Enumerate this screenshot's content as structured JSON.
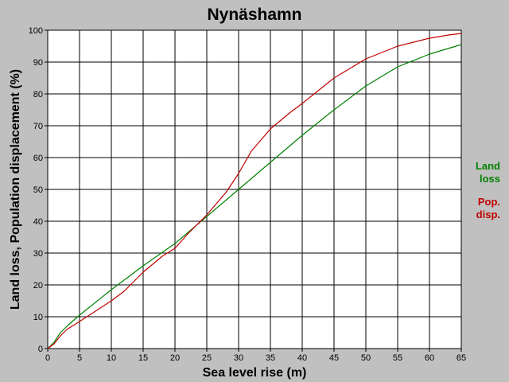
{
  "chart_data": {
    "type": "line",
    "title": "Nynäshamn",
    "xlabel": "Sea level rise (m)",
    "ylabel": "Land loss, Population displacement (%)",
    "xlim": [
      0,
      65
    ],
    "ylim": [
      0,
      100
    ],
    "xticks": [
      0,
      5,
      10,
      15,
      20,
      25,
      30,
      35,
      40,
      45,
      50,
      55,
      60,
      65
    ],
    "yticks": [
      0,
      10,
      20,
      30,
      40,
      50,
      60,
      70,
      80,
      90,
      100
    ],
    "grid": true,
    "legend_position": "right",
    "series": [
      {
        "name": "Land loss",
        "legend_lines": [
          "Land",
          "loss"
        ],
        "color": "#008000",
        "x": [
          0,
          1,
          2,
          3,
          5,
          10,
          15,
          20,
          25,
          30,
          35,
          40,
          45,
          50,
          55,
          60,
          65
        ],
        "y": [
          0,
          2,
          5,
          7,
          10.5,
          18.5,
          26,
          33,
          41.5,
          50,
          58.5,
          67,
          75,
          82.5,
          88.5,
          92.5,
          95.5
        ]
      },
      {
        "name": "Pop. disp.",
        "legend_lines": [
          "Pop.",
          "disp."
        ],
        "color": "#c00000",
        "x": [
          0,
          1,
          2,
          3,
          5,
          10,
          12,
          15,
          18,
          20,
          22,
          25,
          28,
          30,
          32,
          35,
          38,
          40,
          45,
          50,
          55,
          60,
          63,
          65
        ],
        "y": [
          0,
          1.5,
          4,
          6,
          8.5,
          15,
          18,
          24,
          29,
          31.5,
          36,
          42,
          49,
          55,
          62,
          69,
          74,
          77,
          85,
          91,
          95,
          97.5,
          98.5,
          99
        ]
      }
    ]
  }
}
